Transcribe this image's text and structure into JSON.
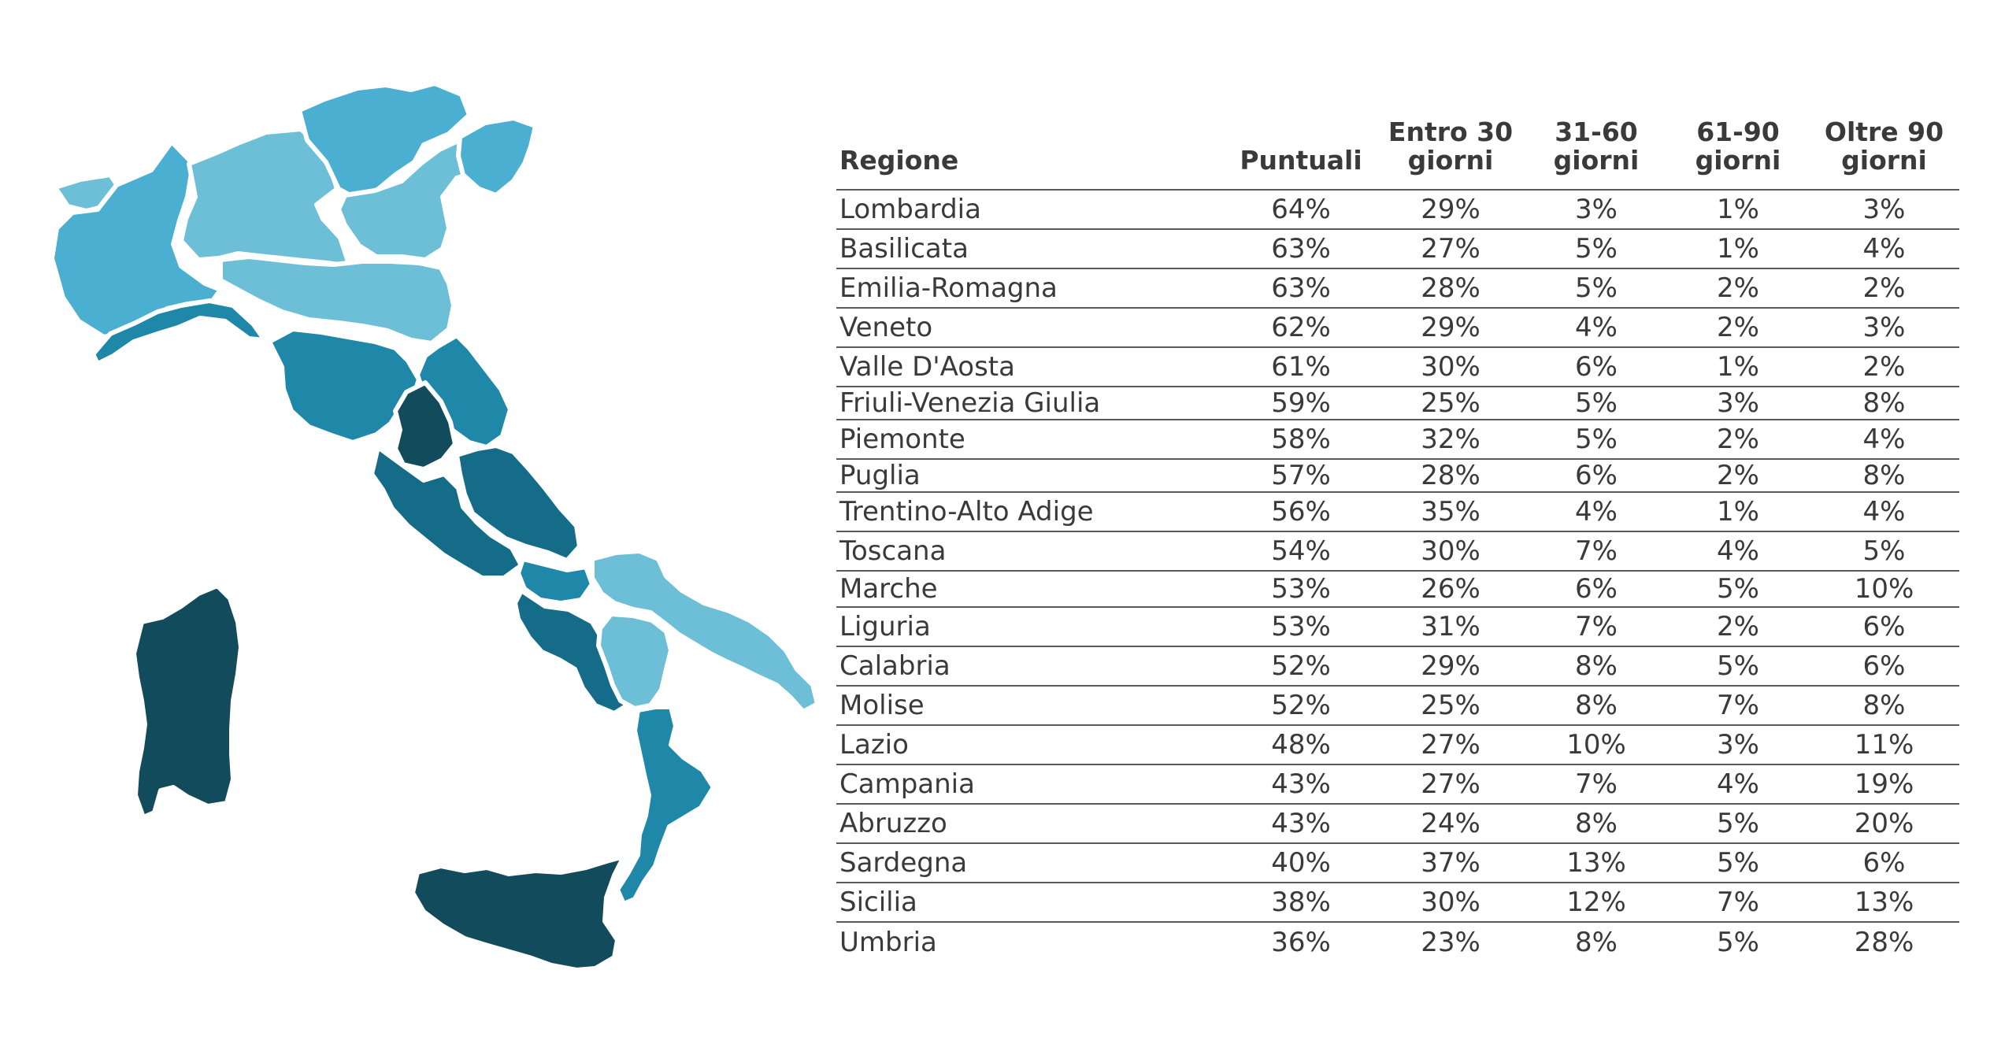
{
  "colors": {
    "lightest": "#6cbfd6",
    "light": "#4aafd0",
    "mid": "#1f88a8",
    "dark": "#146c88",
    "darkest": "#124b5c",
    "text": "#3a3a3a"
  },
  "table": {
    "headers": {
      "region": "Regione",
      "c1": "Puntuali",
      "c2": "Entro 30\ngiorni",
      "c3": "31-60\ngiorni",
      "c4": "61-90\ngiorni",
      "c5": "Oltre 90\ngiorni"
    },
    "rows": [
      {
        "region": "Lombardia",
        "c1": "64%",
        "c2": "29%",
        "c3": "3%",
        "c4": "1%",
        "c5": "3%"
      },
      {
        "region": "Basilicata",
        "c1": "63%",
        "c2": "27%",
        "c3": "5%",
        "c4": "1%",
        "c5": "4%"
      },
      {
        "region": "Emilia-Romagna",
        "c1": "63%",
        "c2": "28%",
        "c3": "5%",
        "c4": "2%",
        "c5": "2%"
      },
      {
        "region": "Veneto",
        "c1": "62%",
        "c2": "29%",
        "c3": "4%",
        "c4": "2%",
        "c5": "3%"
      },
      {
        "region": "Valle D'Aosta",
        "c1": "61%",
        "c2": "30%",
        "c3": "6%",
        "c4": "1%",
        "c5": "2%"
      },
      {
        "region": "Friuli-Venezia Giulia",
        "c1": "59%",
        "c2": "25%",
        "c3": "5%",
        "c4": "3%",
        "c5": "8%"
      },
      {
        "region": "Piemonte",
        "c1": "58%",
        "c2": "32%",
        "c3": "5%",
        "c4": "2%",
        "c5": "4%"
      },
      {
        "region": "Puglia",
        "c1": "57%",
        "c2": "28%",
        "c3": "6%",
        "c4": "2%",
        "c5": "8%"
      },
      {
        "region": "Trentino-Alto Adige",
        "c1": "56%",
        "c2": "35%",
        "c3": "4%",
        "c4": "1%",
        "c5": "4%"
      },
      {
        "region": "Toscana",
        "c1": "54%",
        "c2": "30%",
        "c3": "7%",
        "c4": "4%",
        "c5": "5%"
      },
      {
        "region": "Marche",
        "c1": "53%",
        "c2": "26%",
        "c3": "6%",
        "c4": "5%",
        "c5": "10%"
      },
      {
        "region": "Liguria",
        "c1": "53%",
        "c2": "31%",
        "c3": "7%",
        "c4": "2%",
        "c5": "6%"
      },
      {
        "region": "Calabria",
        "c1": "52%",
        "c2": "29%",
        "c3": "8%",
        "c4": "5%",
        "c5": "6%"
      },
      {
        "region": "Molise",
        "c1": "52%",
        "c2": "25%",
        "c3": "8%",
        "c4": "7%",
        "c5": "8%"
      },
      {
        "region": "Lazio",
        "c1": "48%",
        "c2": "27%",
        "c3": "10%",
        "c4": "3%",
        "c5": "11%"
      },
      {
        "region": "Campania",
        "c1": "43%",
        "c2": "27%",
        "c3": "7%",
        "c4": "4%",
        "c5": "19%"
      },
      {
        "region": "Abruzzo",
        "c1": "43%",
        "c2": "24%",
        "c3": "8%",
        "c4": "5%",
        "c5": "20%"
      },
      {
        "region": "Sardegna",
        "c1": "40%",
        "c2": "37%",
        "c3": "13%",
        "c4": "5%",
        "c5": "6%"
      },
      {
        "region": "Sicilia",
        "c1": "38%",
        "c2": "30%",
        "c3": "12%",
        "c4": "7%",
        "c5": "13%"
      },
      {
        "region": "Umbria",
        "c1": "36%",
        "c2": "23%",
        "c3": "8%",
        "c4": "5%",
        "c5": "28%"
      }
    ]
  }
}
